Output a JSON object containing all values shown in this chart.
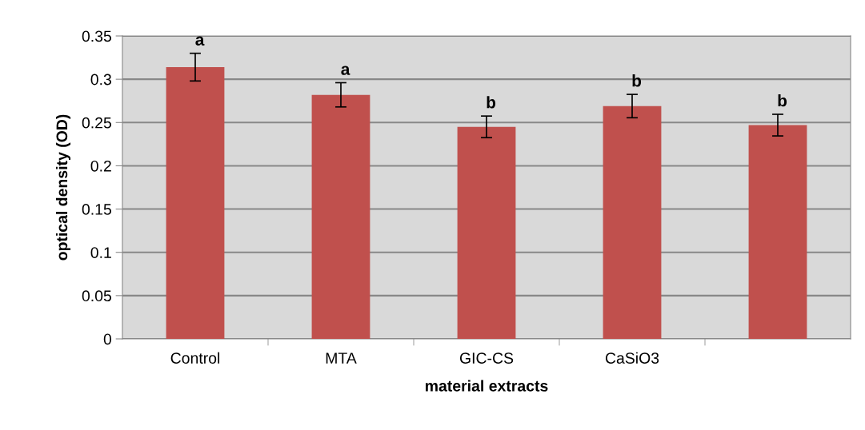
{
  "chart_data": {
    "type": "bar",
    "xlabel": "material extracts",
    "ylabel": "optical density (OD)",
    "categories": [
      "Control",
      "MTA",
      "GIC-CS",
      "CaSiO3",
      null
    ],
    "values": [
      0.314,
      0.282,
      0.245,
      0.269,
      0.247
    ],
    "errors": [
      0.016,
      0.014,
      0.0125,
      0.0135,
      0.0125
    ],
    "value_labels": [
      "a",
      "a",
      "b",
      "b",
      "b"
    ],
    "color": "#c0504d",
    "ylim": [
      0,
      0.35
    ],
    "yticks": [
      0,
      0.05,
      0.1,
      0.15,
      0.2,
      0.25,
      0.3,
      0.35
    ],
    "grid": "y"
  }
}
